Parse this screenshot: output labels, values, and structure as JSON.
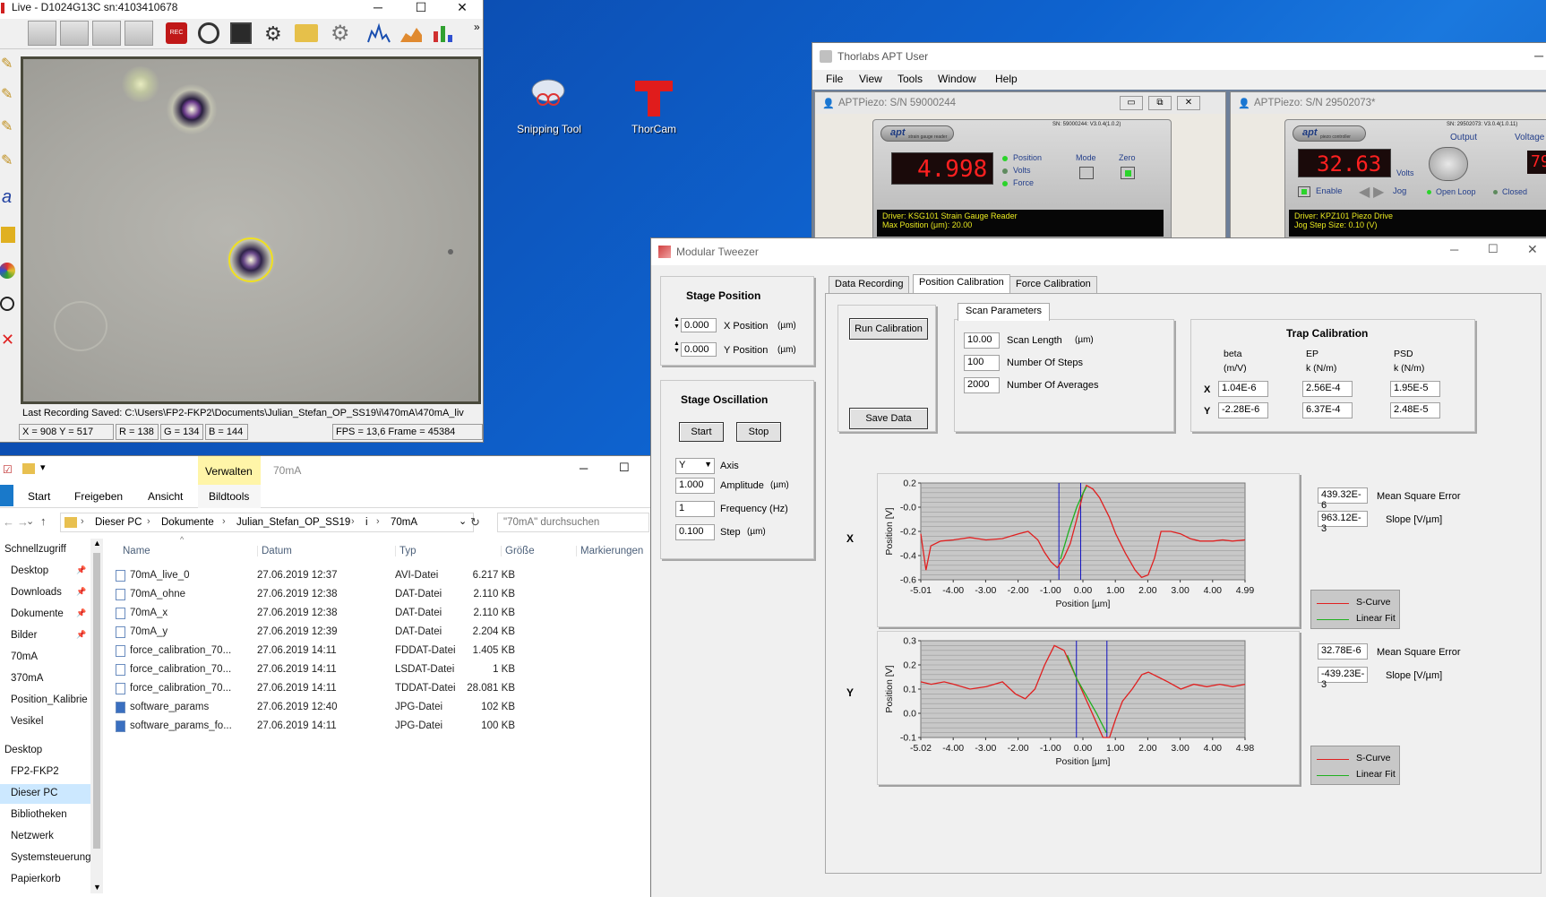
{
  "desktop": {
    "icons": [
      {
        "label": "Snipping Tool"
      },
      {
        "label": "ThorCam"
      }
    ]
  },
  "live_window": {
    "title": "Live - D1024G13C   sn:4103410678",
    "controls": {
      "minimize": "─",
      "maximize": "☐",
      "close": "✕"
    },
    "overflow": "»",
    "rec_label": "REC",
    "last_recording": "Last Recording Saved: C:\\Users\\FP2-FKP2\\Documents\\Julian_Stefan_OP_SS19\\i\\470mA\\470mA_liv",
    "status": {
      "xy": "X = 908  Y = 517",
      "r": "R = 138",
      "g": "G = 134",
      "b": "B = 144",
      "fps": "FPS = 13,6  Frame = 45384"
    }
  },
  "apt_window": {
    "title": "Thorlabs APT User",
    "menu": [
      "File",
      "View",
      "Tools",
      "Window",
      "Help"
    ],
    "panel1": {
      "title": "APTPiezo: S/N 59000244",
      "logo": "apt",
      "logo_sub": "strain gauge reader",
      "serial": "SN: 59000244: V3.0.4(1.0.2)",
      "display": "4.998",
      "labels": {
        "position": "Position",
        "volts": "Volts",
        "force": "Force",
        "mode": "Mode",
        "zero": "Zero"
      },
      "driver": "Driver: KSG101 Strain Gauge Reader",
      "driver2": "Max Position (μm): 20.00"
    },
    "panel2": {
      "title": "APTPiezo: S/N 29502073*",
      "logo": "apt",
      "logo_sub": "piezo controller",
      "serial": "SN: 29502073: V3.0.4(1.0.11)",
      "display": "32.63",
      "display_unit": "Volts",
      "display2": "79",
      "labels": {
        "output": "Output",
        "voltage": "Voltage",
        "enable": "Enable",
        "jog": "Jog",
        "open_loop": "Open Loop",
        "closed": "Closed"
      },
      "driver": "Driver: KPZ101 Piezo Drive",
      "driver2": "Jog Step Size: 0.10 (V)"
    }
  },
  "explorer": {
    "qa_title": "70mA",
    "manage_tab": "Verwalten",
    "ribbon_tabs": [
      "Start",
      "Freigeben",
      "Ansicht",
      "Bildtools"
    ],
    "file_tab": "",
    "breadcrumb": [
      "Dieser PC",
      "Dokumente",
      "Julian_Stefan_OP_SS19",
      "i",
      "70mA"
    ],
    "search_placeholder": "\"70mA\" durchsuchen",
    "columns": [
      "Name",
      "Datum",
      "Typ",
      "Größe",
      "Markierungen"
    ],
    "files": [
      {
        "name": "70mA_live_0",
        "date": "27.06.2019 12:37",
        "type": "AVI-Datei",
        "size": "6.217 KB"
      },
      {
        "name": "70mA_ohne",
        "date": "27.06.2019 12:38",
        "type": "DAT-Datei",
        "size": "2.110 KB"
      },
      {
        "name": "70mA_x",
        "date": "27.06.2019 12:38",
        "type": "DAT-Datei",
        "size": "2.110 KB"
      },
      {
        "name": "70mA_y",
        "date": "27.06.2019 12:39",
        "type": "DAT-Datei",
        "size": "2.204 KB"
      },
      {
        "name": "force_calibration_70...",
        "date": "27.06.2019 14:11",
        "type": "FDDAT-Datei",
        "size": "1.405 KB"
      },
      {
        "name": "force_calibration_70...",
        "date": "27.06.2019 14:11",
        "type": "LSDAT-Datei",
        "size": "1 KB"
      },
      {
        "name": "force_calibration_70...",
        "date": "27.06.2019 14:11",
        "type": "TDDAT-Datei",
        "size": "28.081 KB"
      },
      {
        "name": "software_params",
        "date": "27.06.2019 12:40",
        "type": "JPG-Datei",
        "size": "102 KB"
      },
      {
        "name": "software_params_fo...",
        "date": "27.06.2019 14:11",
        "type": "JPG-Datei",
        "size": "100 KB"
      }
    ],
    "nav": [
      "Schnellzugriff",
      "Desktop",
      "Downloads",
      "Dokumente",
      "Bilder",
      "70mA",
      "370mA",
      "Position_Kalibrie",
      "Vesikel",
      "Desktop",
      "FP2-FKP2",
      "Dieser PC",
      "Bibliotheken",
      "Netzwerk",
      "Systemsteuerung",
      "Papierkorb"
    ],
    "sort_arrow": "^"
  },
  "tweezer": {
    "title": "Modular Tweezer",
    "tabs": [
      "Data Recording",
      "Position Calibration",
      "Force Calibration"
    ],
    "stage_position": {
      "title": "Stage Position",
      "x_value": "0.000",
      "x_label": "X Position",
      "x_unit": "(µm)",
      "y_value": "0.000",
      "y_label": "Y Position",
      "y_unit": "(µm)"
    },
    "stage_oscillation": {
      "title": "Stage Oscillation",
      "start": "Start",
      "stop": "Stop",
      "axis_value": "Y",
      "axis_label": "Axis",
      "amplitude_value": "1.000",
      "amplitude_label": "Amplitude",
      "amplitude_unit": "(µm)",
      "frequency_value": "1",
      "frequency_label": "Frequency (Hz)",
      "step_value": "0.100",
      "step_label": "Step",
      "step_unit": "(µm)"
    },
    "run_calibration": "Run Calibration",
    "save_data": "Save Data",
    "scan_parameters": {
      "tab": "Scan Parameters",
      "scan_length": "10.00",
      "scan_length_label": "Scan Length",
      "scan_length_unit": "(µm)",
      "steps": "100",
      "steps_label": "Number Of Steps",
      "averages": "2000",
      "averages_label": "Number Of Averages"
    },
    "trap": {
      "title": "Trap Calibration",
      "h_beta": "beta",
      "h_beta_u": "(m/V)",
      "h_ep": "EP",
      "h_ep_u": "k (N/m)",
      "h_psd": "PSD",
      "h_psd_u": "k (N/m)",
      "x_label": "X",
      "y_label": "Y",
      "x_beta": "1.04E-6",
      "x_ep": "2.56E-4",
      "x_psd": "1.95E-5",
      "y_beta": "-2.28E-6",
      "y_ep": "6.37E-4",
      "y_psd": "2.48E-5"
    },
    "x_plot": {
      "side_label": "X",
      "mse": "439.32E-6",
      "mse_label": "Mean Square Error",
      "slope": "963.12E-3",
      "slope_label": "Slope [V/µm]",
      "legend": [
        "S-Curve",
        "Linear Fit"
      ]
    },
    "y_plot": {
      "side_label": "Y",
      "mse": "32.78E-6",
      "mse_label": "Mean Square Error",
      "slope": "-439.23E-3",
      "slope_label": "Slope [V/µm]",
      "legend": [
        "S-Curve",
        "Linear Fit"
      ]
    },
    "colors": {
      "scurve": "#e02020",
      "fit": "#20b020",
      "cursor": "#1010c0",
      "plot_bg": "#c8c8c8"
    }
  },
  "chart_data": [
    {
      "type": "line",
      "xlabel": "Position [µm]",
      "ylabel": "Position [V]",
      "xlim": [
        -5.01,
        4.99
      ],
      "ylim": [
        -0.6,
        0.2
      ],
      "x_ticks": [
        "-5.01",
        "-4.00",
        "-3.00",
        "-2.00",
        "-1.00",
        "0.00",
        "1.00",
        "2.00",
        "3.00",
        "4.00",
        "4.99"
      ],
      "y_ticks": [
        "0.2",
        "-0.0",
        "-0.2",
        "-0.4",
        "-0.6"
      ],
      "series": [
        {
          "name": "S-Curve",
          "color": "#e02020",
          "x": [
            -5.01,
            -4.85,
            -4.7,
            -4.4,
            -4.0,
            -3.5,
            -3.0,
            -2.5,
            -2.0,
            -1.7,
            -1.4,
            -1.2,
            -1.0,
            -0.8,
            -0.6,
            -0.4,
            -0.2,
            0.0,
            0.1,
            0.3,
            0.5,
            0.8,
            1.0,
            1.3,
            1.6,
            1.8,
            2.0,
            2.2,
            2.4,
            2.7,
            3.0,
            3.3,
            3.6,
            4.0,
            4.3,
            4.6,
            4.99
          ],
          "y": [
            -0.22,
            -0.52,
            -0.32,
            -0.28,
            -0.27,
            -0.25,
            -0.27,
            -0.26,
            -0.22,
            -0.2,
            -0.27,
            -0.37,
            -0.45,
            -0.5,
            -0.42,
            -0.3,
            -0.1,
            0.12,
            0.18,
            0.15,
            0.08,
            -0.08,
            -0.22,
            -0.38,
            -0.52,
            -0.58,
            -0.56,
            -0.42,
            -0.2,
            -0.2,
            -0.22,
            -0.26,
            -0.28,
            -0.28,
            -0.27,
            -0.28,
            -0.27
          ]
        },
        {
          "name": "Linear Fit",
          "color": "#20b020",
          "x": [
            -0.7,
            -0.45,
            -0.2,
            0.0,
            0.1
          ],
          "y": [
            -0.43,
            -0.2,
            0.0,
            0.12,
            0.17
          ]
        }
      ],
      "cursors": [
        -0.75,
        -0.08
      ]
    },
    {
      "type": "line",
      "xlabel": "Position [µm]",
      "ylabel": "Position [V]",
      "xlim": [
        -5.02,
        4.98
      ],
      "ylim": [
        -0.1,
        0.3
      ],
      "x_ticks": [
        "-5.02",
        "-4.00",
        "-3.00",
        "-2.00",
        "-1.00",
        "0.00",
        "1.00",
        "2.00",
        "3.00",
        "4.00",
        "4.98"
      ],
      "y_ticks": [
        "0.3",
        "0.2",
        "0.1",
        "0.0",
        "-0.1"
      ],
      "series": [
        {
          "name": "S-Curve",
          "color": "#e02020",
          "x": [
            -5.02,
            -4.7,
            -4.3,
            -4.0,
            -3.5,
            -3.0,
            -2.5,
            -2.1,
            -1.8,
            -1.5,
            -1.2,
            -0.9,
            -0.6,
            -0.4,
            -0.2,
            0.0,
            0.2,
            0.4,
            0.6,
            0.8,
            1.0,
            1.2,
            1.5,
            1.8,
            2.0,
            2.3,
            2.6,
            3.0,
            3.4,
            3.8,
            4.2,
            4.6,
            4.98
          ],
          "y": [
            0.13,
            0.12,
            0.13,
            0.12,
            0.1,
            0.11,
            0.13,
            0.08,
            0.06,
            0.1,
            0.2,
            0.28,
            0.26,
            0.2,
            0.14,
            0.08,
            0.02,
            -0.04,
            -0.1,
            -0.1,
            -0.02,
            0.05,
            0.1,
            0.16,
            0.17,
            0.15,
            0.13,
            0.1,
            0.12,
            0.11,
            0.12,
            0.11,
            0.12
          ]
        },
        {
          "name": "Linear Fit",
          "color": "#20b020",
          "x": [
            -0.5,
            -0.2,
            0.1,
            0.4,
            0.7
          ],
          "y": [
            0.24,
            0.14,
            0.07,
            0.0,
            -0.08
          ]
        }
      ],
      "cursors": [
        -0.22,
        0.72
      ]
    }
  ]
}
